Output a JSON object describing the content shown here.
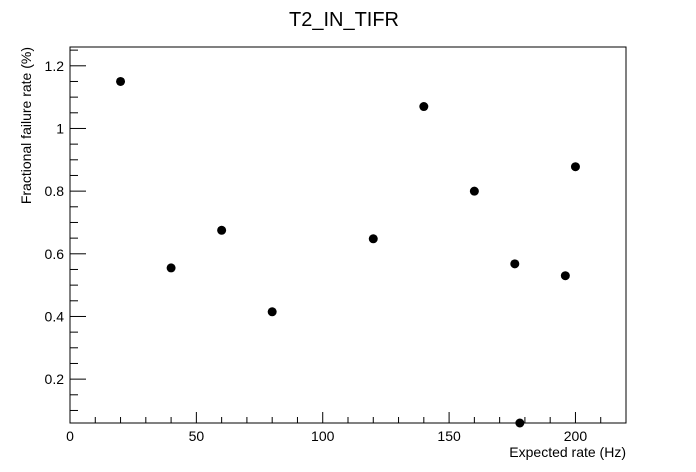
{
  "chart_data": {
    "type": "scatter",
    "title": "T2_IN_TIFR",
    "xlabel": "Expected rate (Hz)",
    "ylabel": "Fractional failure rate (%)",
    "xlim": [
      0,
      220
    ],
    "ylim": [
      0.06,
      1.26
    ],
    "x_ticks": [
      0,
      50,
      100,
      150,
      200
    ],
    "x_tick_labels": [
      "0",
      "50",
      "100",
      "150",
      "200"
    ],
    "y_ticks": [
      0.2,
      0.4,
      0.6,
      0.8,
      1.0,
      1.2
    ],
    "y_tick_labels": [
      "0.2",
      "0.4",
      "0.6",
      "0.8",
      "1",
      "1.2"
    ],
    "grid": false,
    "marker_color": "#000000",
    "points": [
      {
        "x": 20,
        "y": 1.15
      },
      {
        "x": 40,
        "y": 0.555
      },
      {
        "x": 60,
        "y": 0.675
      },
      {
        "x": 80,
        "y": 0.415
      },
      {
        "x": 120,
        "y": 0.648
      },
      {
        "x": 140,
        "y": 1.07
      },
      {
        "x": 160,
        "y": 0.8
      },
      {
        "x": 176,
        "y": 0.568
      },
      {
        "x": 178,
        "y": 0.058
      },
      {
        "x": 196,
        "y": 0.53
      },
      {
        "x": 200,
        "y": 0.878
      }
    ]
  }
}
